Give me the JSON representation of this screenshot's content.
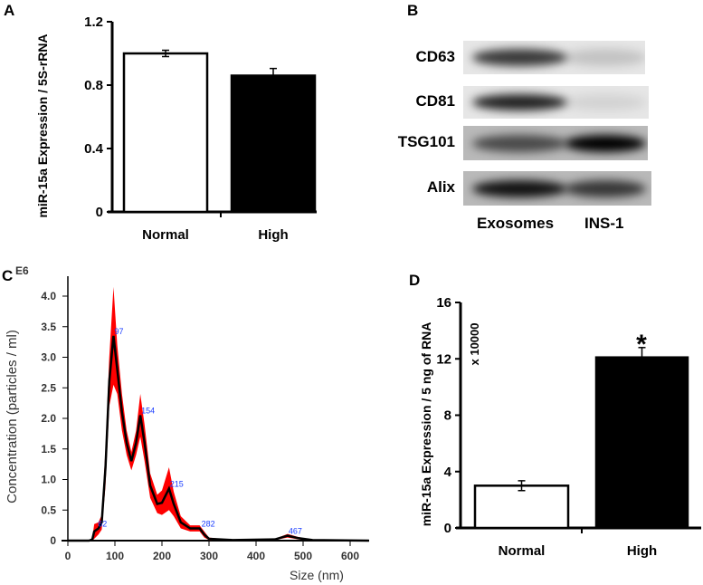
{
  "panel_labels": {
    "a": "A",
    "b": "B",
    "c": "C",
    "d": "D"
  },
  "chart_data": [
    {
      "panel": "A",
      "type": "bar",
      "categories": [
        "Normal",
        "High"
      ],
      "values": [
        1.0,
        0.86
      ],
      "errors": [
        0.02,
        0.045
      ],
      "colors": [
        "#ffffff",
        "#000000"
      ],
      "ylabel": "miR-15a Expression / 5S-rRNA",
      "xlabel": "",
      "ylim": [
        0,
        1.2
      ],
      "yticks": [
        "0",
        "0.4",
        "0.8",
        "1.2"
      ],
      "ytick_values": [
        0,
        0.4,
        0.8,
        1.2
      ]
    },
    {
      "panel": "C",
      "type": "line",
      "xlabel": "Size (nm)",
      "ylabel": "Concentration (particles / ml)",
      "y_multiplier": "E6",
      "xlim": [
        0,
        640
      ],
      "ylim": [
        0,
        4.2
      ],
      "xticks": [
        "0",
        "100",
        "200",
        "300",
        "400",
        "500",
        "600"
      ],
      "xtick_values": [
        0,
        100,
        200,
        300,
        400,
        500,
        600
      ],
      "yticks": [
        "0",
        "0.5",
        "1.0",
        "1.5",
        "2.0",
        "2.5",
        "3.0",
        "3.5",
        "4.0"
      ],
      "ytick_values": [
        0,
        0.5,
        1.0,
        1.5,
        2.0,
        2.5,
        3.0,
        3.5,
        4.0
      ],
      "line_color": "#000000",
      "band_color": "#ff0000",
      "x": [
        0,
        45,
        52,
        56,
        65,
        72,
        80,
        88,
        97,
        105,
        115,
        125,
        135,
        145,
        154,
        163,
        175,
        190,
        200,
        215,
        225,
        240,
        260,
        280,
        290,
        300,
        350,
        440,
        467,
        490,
        520,
        640
      ],
      "y": [
        0,
        0,
        0.02,
        0.15,
        0.2,
        0.3,
        1.2,
        2.6,
        3.35,
        2.8,
        2.1,
        1.6,
        1.3,
        1.6,
        2.05,
        1.6,
        0.9,
        0.6,
        0.62,
        0.85,
        0.6,
        0.3,
        0.2,
        0.2,
        0.1,
        0.03,
        0.01,
        0.02,
        0.08,
        0.04,
        0.01,
        0
      ],
      "band_halfwidth": [
        0,
        0,
        0.02,
        0.12,
        0.1,
        0.12,
        0.3,
        0.4,
        0.8,
        0.4,
        0.3,
        0.2,
        0.15,
        0.2,
        0.35,
        0.3,
        0.2,
        0.15,
        0.2,
        0.35,
        0.2,
        0.1,
        0.05,
        0.05,
        0.05,
        0.02,
        0,
        0.01,
        0.03,
        0.02,
        0,
        0
      ],
      "peak_labels": [
        {
          "x": 62,
          "y": 0.2,
          "text": "62"
        },
        {
          "x": 97,
          "y": 3.35,
          "text": "97"
        },
        {
          "x": 154,
          "y": 2.05,
          "text": "154"
        },
        {
          "x": 215,
          "y": 0.85,
          "text": "215"
        },
        {
          "x": 282,
          "y": 0.2,
          "text": "282"
        },
        {
          "x": 467,
          "y": 0.08,
          "text": "467"
        }
      ],
      "peak_label_color": "#1a3cff"
    },
    {
      "panel": "D",
      "type": "bar",
      "categories": [
        "Normal",
        "High"
      ],
      "values": [
        3.0,
        12.1
      ],
      "errors": [
        0.35,
        0.7
      ],
      "colors": [
        "#ffffff",
        "#000000"
      ],
      "ylabel": "miR-15a Expression / 5 ng of RNA",
      "y_multiplier": "x 10000",
      "xlabel": "",
      "ylim": [
        0,
        16
      ],
      "yticks": [
        "0",
        "4",
        "8",
        "12",
        "16"
      ],
      "ytick_values": [
        0,
        4,
        8,
        12,
        16
      ],
      "annotation": "*"
    }
  ],
  "western_blot": {
    "rows": [
      {
        "label": "CD63",
        "intensity": [
          0.75,
          0.15
        ]
      },
      {
        "label": "CD81",
        "intensity": [
          0.85,
          0.08
        ]
      },
      {
        "label": "TSG101",
        "intensity": [
          0.6,
          1.0
        ]
      },
      {
        "label": "Alix",
        "intensity": [
          0.9,
          0.7
        ]
      }
    ],
    "columns": [
      "Exosomes",
      "INS-1"
    ]
  }
}
